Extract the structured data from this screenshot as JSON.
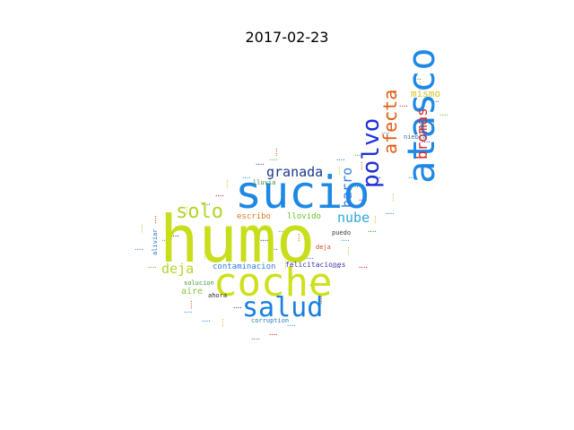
{
  "title": "2017-02-23",
  "words": [
    {
      "text": "humo",
      "color": "#c8de1a"
    },
    {
      "text": "sucio",
      "color": "#1e88e5"
    },
    {
      "text": "coche",
      "color": "#cfe01b"
    },
    {
      "text": "atasco",
      "color": "#1e88e5"
    },
    {
      "text": "salud",
      "color": "#1a7fe0"
    },
    {
      "text": "polvo",
      "color": "#1f2fd8"
    },
    {
      "text": "solo",
      "color": "#b0d62a"
    },
    {
      "text": "afecta",
      "color": "#e35a12"
    },
    {
      "text": "bromas",
      "color": "#d62828"
    },
    {
      "text": "granada",
      "color": "#1a3a8f"
    },
    {
      "text": "barro",
      "color": "#2e7de0"
    },
    {
      "text": "nube",
      "color": "#2aa9d8"
    },
    {
      "text": "deja",
      "color": "#b6d62a"
    },
    {
      "text": "mismo",
      "color": "#d6c41c"
    },
    {
      "text": "contaminacion",
      "color": "#2e7de0"
    },
    {
      "text": "escribo",
      "color": "#e07a1c"
    },
    {
      "text": "llovido",
      "color": "#64c22a"
    },
    {
      "text": "aire",
      "color": "#86c43a"
    },
    {
      "text": "felicitaciones",
      "color": "#3b3b9f"
    },
    {
      "text": "puedo",
      "color": "#3a3a3a"
    },
    {
      "text": "ahora",
      "color": "#2a2a2a"
    },
    {
      "text": "corruption",
      "color": "#2a7cc0"
    },
    {
      "text": "aliviar",
      "color": "#1a6fd0"
    },
    {
      "text": "lluvia",
      "color": "#2a8a3a"
    },
    {
      "text": "niebla",
      "color": "#3a6fa0"
    },
    {
      "text": "deja",
      "color": "#d64a2a"
    },
    {
      "text": "solucion",
      "color": "#3a9a3a"
    }
  ]
}
